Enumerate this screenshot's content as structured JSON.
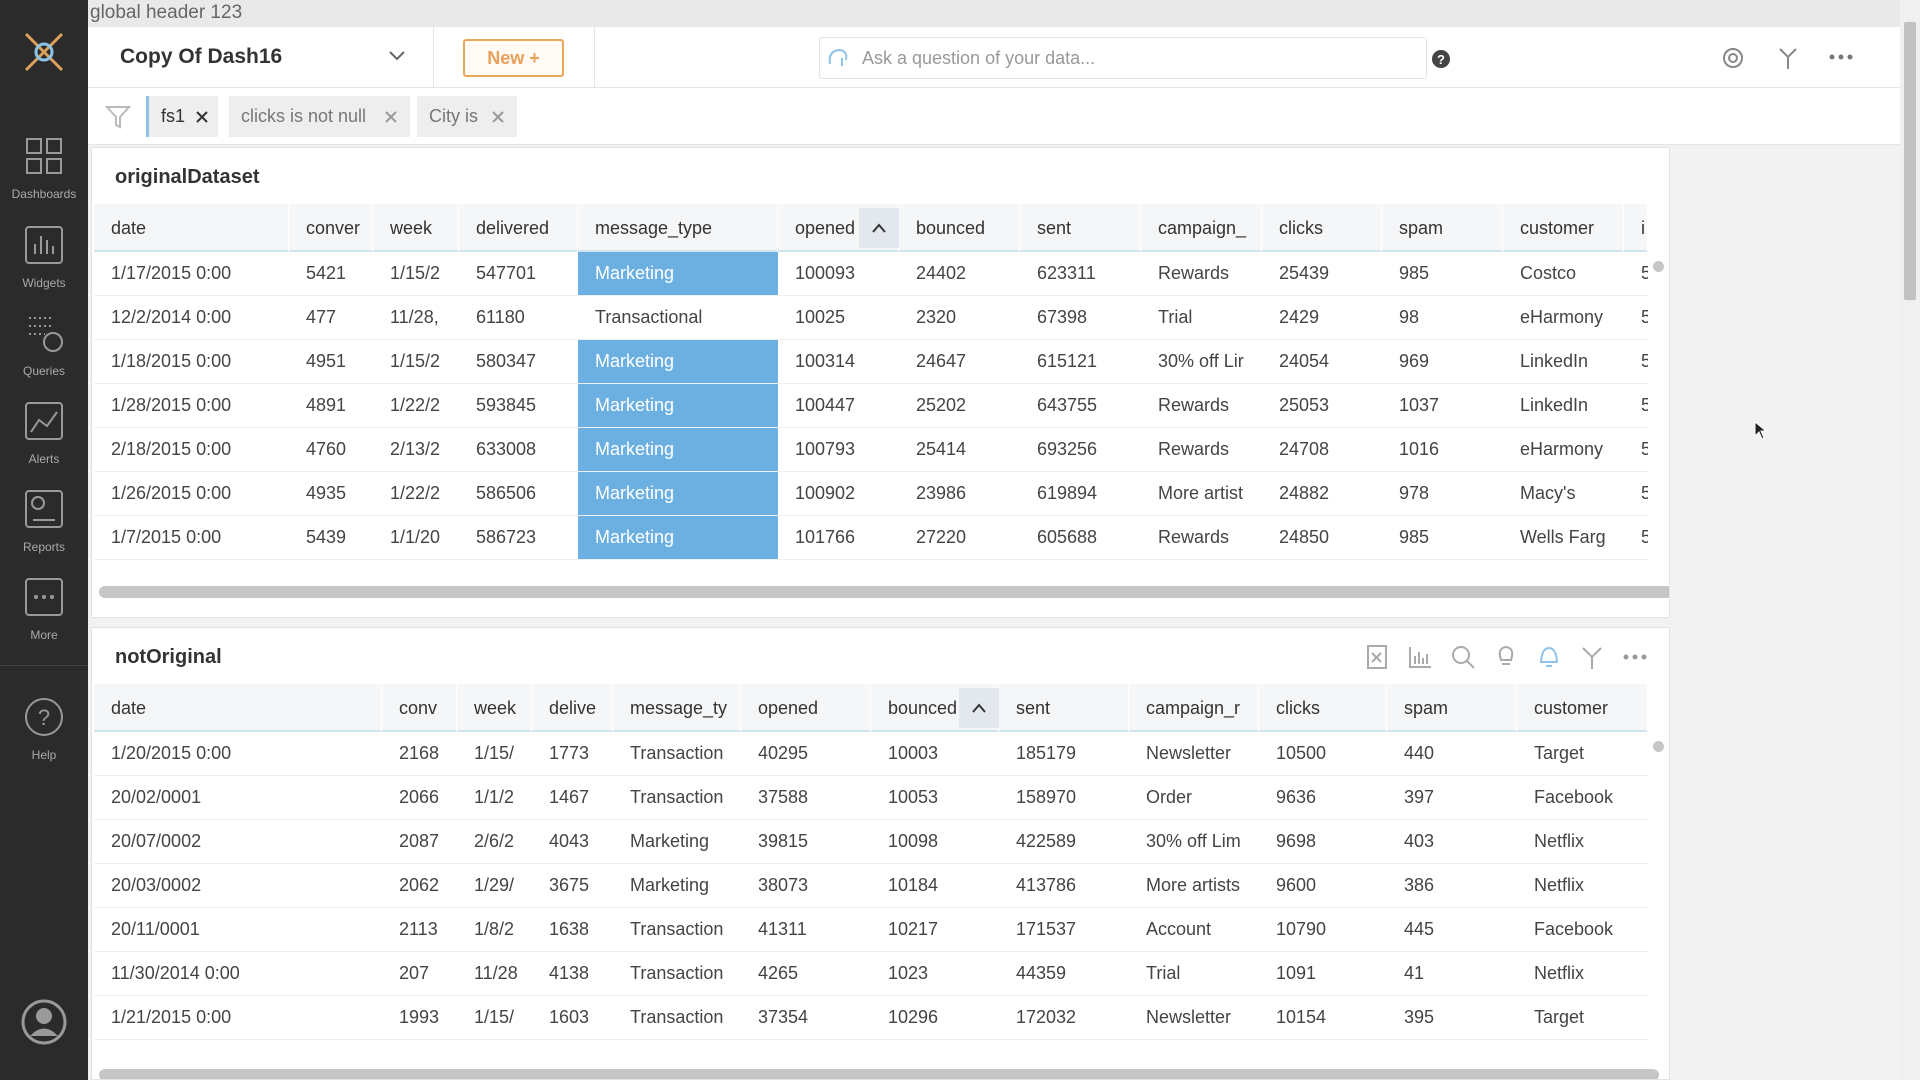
{
  "global_header": "global header 123",
  "sidebar": {
    "items": [
      "Dashboards",
      "Widgets",
      "Queries",
      "Alerts",
      "Reports",
      "More",
      "Help"
    ]
  },
  "dashboard": {
    "title": "Copy Of Dash16",
    "new_button": "New +",
    "search_placeholder": "Ask a question of your data..."
  },
  "filters": [
    "fs1",
    "clicks is not null",
    "City is"
  ],
  "tables": [
    {
      "title": "originalDataset",
      "sorted_column": 5,
      "highlight": {
        "column": 4,
        "color": "#6cb0e2"
      },
      "columns": [
        "date",
        "conver",
        "week",
        "delivered",
        "message_type",
        "opened",
        "bounced",
        "sent",
        "campaign_",
        "clicks",
        "spam",
        "customer",
        "i"
      ],
      "rows": [
        [
          "1/17/2015 0:00",
          "5421",
          "1/15/2",
          "547701",
          "Marketing",
          "100093",
          "24402",
          "623311",
          "Rewards",
          "25439",
          "985",
          "Costco",
          "5"
        ],
        [
          "12/2/2014 0:00",
          "477",
          "11/28,",
          "61180",
          "Transactional",
          "10025",
          "2320",
          "67398",
          "Trial",
          "2429",
          "98",
          "eHarmony",
          "5"
        ],
        [
          "1/18/2015 0:00",
          "4951",
          "1/15/2",
          "580347",
          "Marketing",
          "100314",
          "24647",
          "615121",
          "30% off Lir",
          "24054",
          "969",
          "LinkedIn",
          "5"
        ],
        [
          "1/28/2015 0:00",
          "4891",
          "1/22/2",
          "593845",
          "Marketing",
          "100447",
          "25202",
          "643755",
          "Rewards",
          "25053",
          "1037",
          "LinkedIn",
          "5"
        ],
        [
          "2/18/2015 0:00",
          "4760",
          "2/13/2",
          "633008",
          "Marketing",
          "100793",
          "25414",
          "693256",
          "Rewards",
          "24708",
          "1016",
          "eHarmony",
          "5"
        ],
        [
          "1/26/2015 0:00",
          "4935",
          "1/22/2",
          "586506",
          "Marketing",
          "100902",
          "23986",
          "619894",
          "More artist",
          "24882",
          "978",
          "Macy's",
          "5"
        ],
        [
          "1/7/2015 0:00",
          "5439",
          "1/1/20",
          "586723",
          "Marketing",
          "101766",
          "27220",
          "605688",
          "Rewards",
          "24850",
          "985",
          "Wells Farg",
          "5"
        ]
      ]
    },
    {
      "title": "notOriginal",
      "sorted_column": 6,
      "columns": [
        "date",
        "conv",
        "week",
        "delive",
        "message_ty",
        "opened",
        "bounced",
        "sent",
        "campaign_r",
        "clicks",
        "spam",
        "customer"
      ],
      "rows": [
        [
          "1/20/2015 0:00",
          "2168",
          "1/15/",
          "1773",
          "Transaction",
          "40295",
          "10003",
          "185179",
          "Newsletter",
          "10500",
          "440",
          "Target"
        ],
        [
          "20/02/0001",
          "2066",
          "1/1/2",
          "1467",
          "Transaction",
          "37588",
          "10053",
          "158970",
          "Order",
          "9636",
          "397",
          "Facebook"
        ],
        [
          "20/07/0002",
          "2087",
          "2/6/2",
          "4043",
          "Marketing",
          "39815",
          "10098",
          "422589",
          "30% off Lim",
          "9698",
          "403",
          "Netflix"
        ],
        [
          "20/03/0002",
          "2062",
          "1/29/",
          "3675",
          "Marketing",
          "38073",
          "10184",
          "413786",
          "More artists",
          "9600",
          "386",
          "Netflix"
        ],
        [
          "20/11/0001",
          "2113",
          "1/8/2",
          "1638",
          "Transaction",
          "41311",
          "10217",
          "171537",
          "Account",
          "10790",
          "445",
          "Facebook"
        ],
        [
          "11/30/2014 0:00",
          "207",
          "11/28",
          "4138",
          "Transaction",
          "4265",
          "1023",
          "44359",
          "Trial",
          "1091",
          "41",
          "Netflix"
        ],
        [
          "1/21/2015 0:00",
          "1993",
          "1/15/",
          "1603",
          "Transaction",
          "37354",
          "10296",
          "172032",
          "Newsletter",
          "10154",
          "395",
          "Target"
        ]
      ]
    }
  ]
}
